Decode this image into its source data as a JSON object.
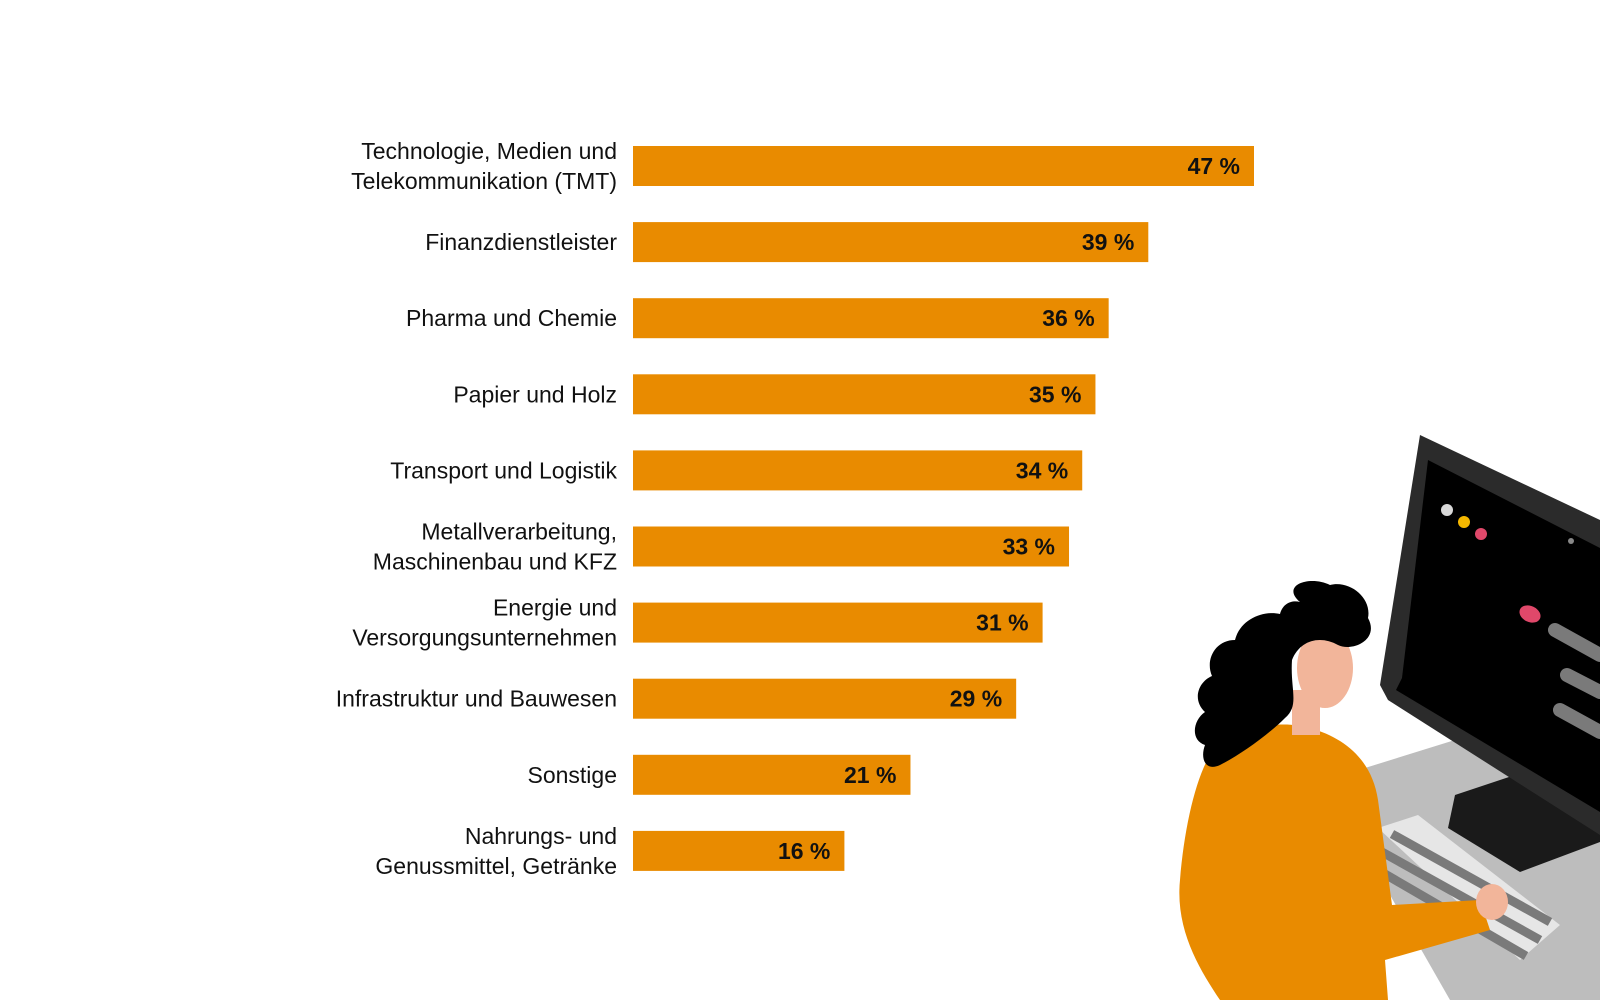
{
  "chart_data": {
    "type": "bar",
    "orientation": "horizontal",
    "categories": [
      [
        "Technologie, Medien und",
        "Telekommunikation (TMT)"
      ],
      [
        "Finanzdienstleister"
      ],
      [
        "Pharma und Chemie"
      ],
      [
        "Papier und Holz"
      ],
      [
        "Transport und Logistik"
      ],
      [
        "Metallverarbeitung,",
        "Maschinenbau und KFZ"
      ],
      [
        "Energie und",
        "Versorgungsunternehmen"
      ],
      [
        "Infrastruktur und Bauwesen"
      ],
      [
        "Sonstige"
      ],
      [
        "Nahrungs- und",
        "Genussmittel, Getränke"
      ]
    ],
    "values": [
      47,
      39,
      36,
      35,
      34,
      33,
      31,
      29,
      21,
      16
    ],
    "value_labels": [
      "47 %",
      "39 %",
      "36 %",
      "35 %",
      "34 %",
      "33 %",
      "31 %",
      "29 %",
      "21 %",
      "16 %"
    ],
    "bar_color": "#E98B00",
    "xlim": [
      0,
      47
    ],
    "grid": false,
    "legend": "none"
  },
  "colors": {
    "accent": "#E98B00",
    "text": "#111111",
    "skin": "#F2B59A",
    "hair": "#000000",
    "monitor": "#1E1E1E",
    "desk": "#BDBDBD",
    "dot_gray": "#D9D9D9",
    "dot_yellow": "#F5B800",
    "dot_red": "#E0486A"
  }
}
